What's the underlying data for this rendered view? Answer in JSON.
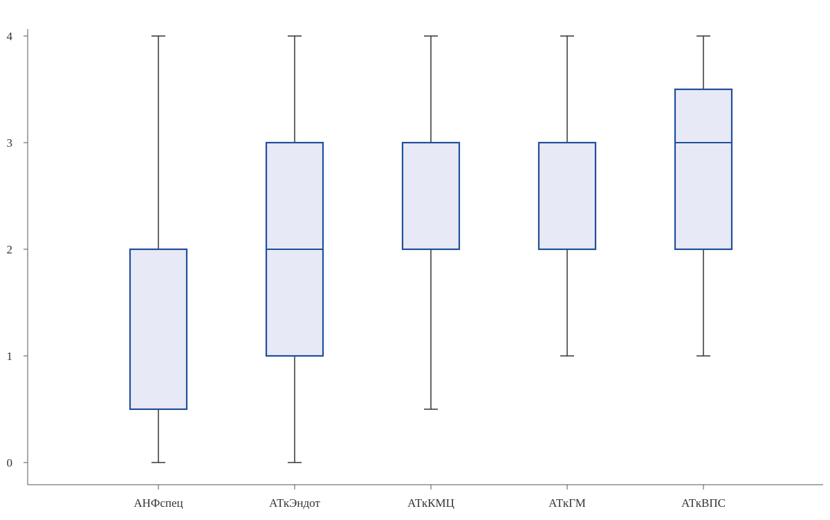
{
  "chart_data": {
    "type": "box",
    "title": "",
    "xlabel": "",
    "ylabel": "",
    "ylim": [
      0,
      4
    ],
    "yticks": [
      0,
      1,
      2,
      3,
      4
    ],
    "grid": false,
    "categories": [
      "АНФспец",
      "АТкЭндот",
      "АТкКМЦ",
      "АТкГМ",
      "АТкВПС"
    ],
    "boxes": [
      {
        "min": 0,
        "q1": 0.5,
        "median": 2,
        "q3": 2,
        "max": 4
      },
      {
        "min": 0,
        "q1": 1,
        "median": 2,
        "q3": 3,
        "max": 4
      },
      {
        "min": 0.5,
        "q1": 2,
        "median": 2,
        "q3": 3,
        "max": 4
      },
      {
        "min": 1,
        "q1": 2,
        "median": 2,
        "q3": 3,
        "max": 4
      },
      {
        "min": 1,
        "q1": 2,
        "median": 3,
        "q3": 3.5,
        "max": 4
      }
    ],
    "colors": {
      "box_fill": "#e8e9f6",
      "box_stroke": "#1f4f9b",
      "whisker": "#333333",
      "axis": "#555555"
    }
  }
}
